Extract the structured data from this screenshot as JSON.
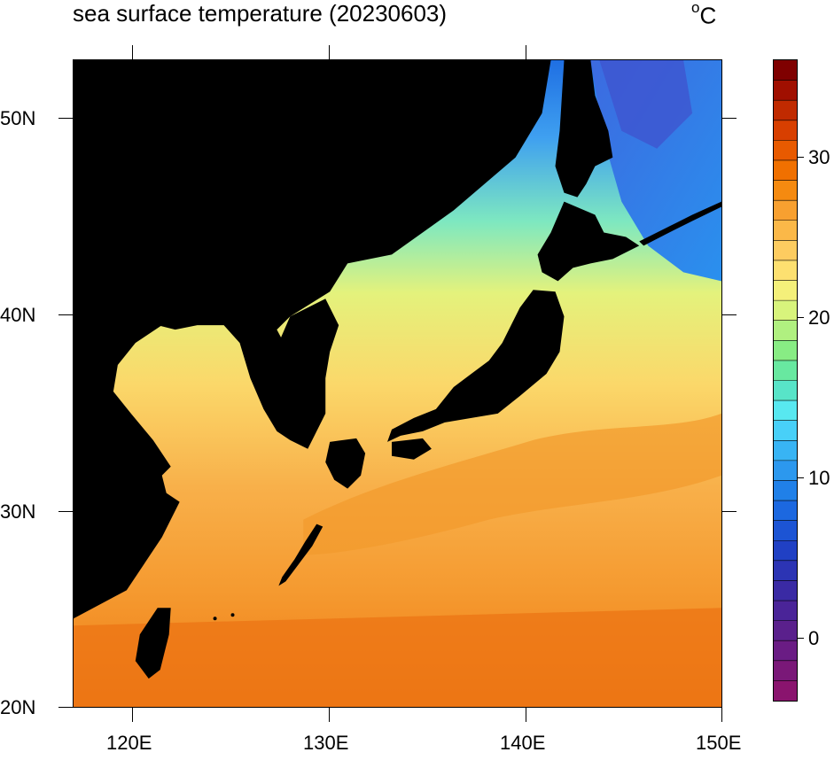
{
  "header": {
    "title": "sea surface temperature (20230603)",
    "unit_superscript": "o",
    "unit_letter": "C"
  },
  "map": {
    "type": "sea surface temperature filled contour map",
    "region": "Japan and surrounding seas",
    "date": "20230603",
    "lon_range": [
      117,
      150
    ],
    "lat_range": [
      20,
      53
    ],
    "land_color": "#000000",
    "lat_ticks": [
      "50N",
      "40N",
      "30N",
      "20N"
    ],
    "lon_ticks": [
      "120E",
      "130E",
      "140E",
      "150E"
    ]
  },
  "colorbar": {
    "labels": [
      "30",
      "20",
      "10",
      "0"
    ],
    "range": [
      -4,
      36
    ],
    "colors_top_to_bottom": [
      "#7f0000",
      "#a00f00",
      "#c02a00",
      "#d83f00",
      "#e85a00",
      "#f07000",
      "#f58a10",
      "#f8a030",
      "#fbb848",
      "#fdcc60",
      "#fde070",
      "#f4f07a",
      "#d8f47c",
      "#b0f080",
      "#88ec84",
      "#68e8a0",
      "#58e4c8",
      "#58e8f0",
      "#48d0f8",
      "#38b4f4",
      "#2c98ee",
      "#2080e8",
      "#1c68e0",
      "#1c54d4",
      "#2040c4",
      "#2c34b4",
      "#3a2aa4",
      "#4a2498",
      "#5a208c",
      "#6a1c84",
      "#7a1878",
      "#8a146e"
    ]
  }
}
